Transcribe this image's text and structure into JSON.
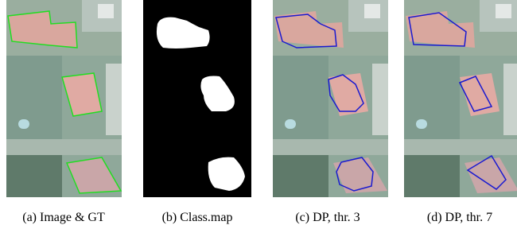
{
  "captions": [
    "(a) Image & GT",
    "(b) Class.map",
    "(c) DP, thr. 3",
    "(d) DP, thr. 7"
  ]
}
